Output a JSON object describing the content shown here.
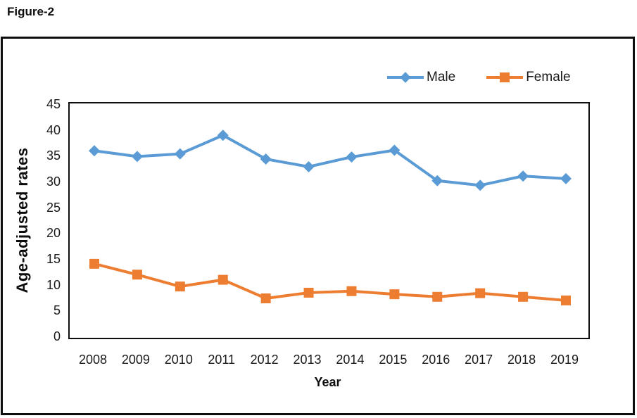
{
  "figure_label": "Figure-2",
  "chart_data": {
    "type": "line",
    "title": "Figure-2",
    "categories": [
      "2008",
      "2009",
      "2010",
      "2011",
      "2012",
      "2013",
      "2014",
      "2015",
      "2016",
      "2017",
      "2018",
      "2019"
    ],
    "series": [
      {
        "name": "Male",
        "color": "#5B9BD5",
        "marker": "diamond",
        "values": [
          36.1,
          35.0,
          35.5,
          39.1,
          34.5,
          33.0,
          34.9,
          36.2,
          30.3,
          29.4,
          31.2,
          30.7
        ]
      },
      {
        "name": "Female",
        "color": "#ED7D31",
        "marker": "square",
        "values": [
          14.2,
          12.1,
          9.8,
          11.1,
          7.5,
          8.6,
          8.9,
          8.3,
          7.8,
          8.5,
          7.8,
          7.1
        ]
      }
    ],
    "xlabel": "Year",
    "ylabel": "Age-adjusted rates",
    "ylim": [
      0,
      45
    ],
    "y_ticks": [
      0,
      5,
      10,
      15,
      20,
      25,
      30,
      35,
      40,
      45
    ],
    "grid": false,
    "legend_position": "top-right",
    "line_width": 4
  }
}
